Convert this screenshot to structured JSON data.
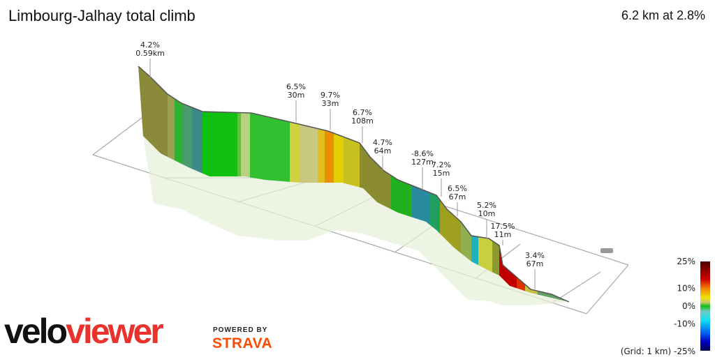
{
  "header": {
    "title": "Limbourg-Jalhay total climb",
    "summary": "6.2 km at 2.8%"
  },
  "chart_data": {
    "type": "area",
    "title": "Limbourg-Jalhay total climb",
    "annotations": [
      {
        "grade": "4.2%",
        "length": "0.59km"
      },
      {
        "grade": "6.5%",
        "length": "30m"
      },
      {
        "grade": "9.7%",
        "length": "33m"
      },
      {
        "grade": "6.7%",
        "length": "108m"
      },
      {
        "grade": "4.7%",
        "length": "64m"
      },
      {
        "grade": "-8.6%",
        "length": "127m"
      },
      {
        "grade": "7.2%",
        "length": "15m"
      },
      {
        "grade": "6.5%",
        "length": "67m"
      },
      {
        "grade": "5.2%",
        "length": "10m"
      },
      {
        "grade": "17.5%",
        "length": "11m"
      },
      {
        "grade": "3.4%",
        "length": "67m"
      }
    ],
    "legend": {
      "ticks": [
        "25%",
        "10%",
        "0%",
        "-10%"
      ],
      "bottom_label": "(Grid: 1 km) -25%",
      "stops": [
        {
          "v": 25,
          "c": "#4a0000"
        },
        {
          "v": 15,
          "c": "#d00000"
        },
        {
          "v": 10,
          "c": "#f08000"
        },
        {
          "v": 5,
          "c": "#f0e000"
        },
        {
          "v": 2,
          "c": "#c8c870"
        },
        {
          "v": 0,
          "c": "#10c010"
        },
        {
          "v": -3,
          "c": "#70c8c8"
        },
        {
          "v": -8,
          "c": "#10e0f0"
        },
        {
          "v": -15,
          "c": "#0060f0"
        },
        {
          "v": -20,
          "c": "#0000c0"
        },
        {
          "v": -25,
          "c": "#000050"
        }
      ]
    }
  },
  "branding": {
    "logo_a": "velo",
    "logo_b": "viewer",
    "powered": "POWERED BY",
    "strava": "STRAVA"
  }
}
